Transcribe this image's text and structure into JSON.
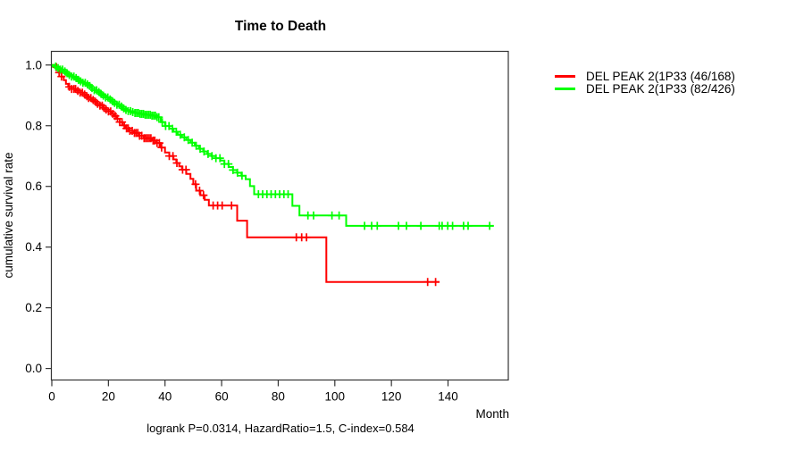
{
  "chart_data": {
    "type": "line",
    "subtype": "kaplan-meier-step",
    "title": "Time to Death",
    "xlabel": "Month",
    "ylabel": "cumulative survival rate",
    "footer": "logrank P=0.0314, HazardRatio=1.5, C-index=0.584",
    "grid": false,
    "legend_position": "right-outside",
    "x_ticks": [
      0,
      20,
      40,
      60,
      80,
      100,
      120,
      140
    ],
    "y_ticks": [
      "0.0",
      "0.2",
      "0.4",
      "0.6",
      "0.8",
      "1.0"
    ],
    "x_axis": {
      "min": 0,
      "max": 161.3
    },
    "y_axis": {
      "min": -0.038,
      "max": 1.045
    },
    "axis_color": "#333333",
    "series": [
      {
        "name": "DEL PEAK 2(1P33 (46/168)",
        "events": 46,
        "total": 168,
        "color": "#ff0000",
        "end_month": 137,
        "steps": [
          [
            0,
            1.0
          ],
          [
            1,
            0.993
          ],
          [
            1.8,
            0.985
          ],
          [
            2.6,
            0.975
          ],
          [
            3.4,
            0.962
          ],
          [
            4.2,
            0.95
          ],
          [
            5,
            0.938
          ],
          [
            5.8,
            0.928
          ],
          [
            7,
            0.921
          ],
          [
            8.5,
            0.915
          ],
          [
            10,
            0.909
          ],
          [
            11,
            0.903
          ],
          [
            12,
            0.897
          ],
          [
            13,
            0.891
          ],
          [
            14,
            0.885
          ],
          [
            15,
            0.879
          ],
          [
            16,
            0.872
          ],
          [
            17,
            0.866
          ],
          [
            18,
            0.859
          ],
          [
            19,
            0.853
          ],
          [
            20,
            0.847
          ],
          [
            21,
            0.839
          ],
          [
            22,
            0.832
          ],
          [
            23,
            0.823
          ],
          [
            24,
            0.812
          ],
          [
            25,
            0.801
          ],
          [
            26,
            0.791
          ],
          [
            27.5,
            0.783
          ],
          [
            29,
            0.776
          ],
          [
            31,
            0.767
          ],
          [
            32.5,
            0.759
          ],
          [
            35.5,
            0.751
          ],
          [
            37,
            0.743
          ],
          [
            38.5,
            0.728
          ],
          [
            40,
            0.712
          ],
          [
            41.5,
            0.7
          ],
          [
            43,
            0.689
          ],
          [
            44,
            0.677
          ],
          [
            45,
            0.666
          ],
          [
            46,
            0.655
          ],
          [
            47.5,
            0.641
          ],
          [
            49,
            0.625
          ],
          [
            50,
            0.607
          ],
          [
            51,
            0.586
          ],
          [
            52.5,
            0.571
          ],
          [
            54,
            0.556
          ],
          [
            55.5,
            0.537
          ],
          [
            65.5,
            0.487
          ],
          [
            69,
            0.432
          ],
          [
            97,
            0.285
          ]
        ],
        "censor_months": [
          1.6,
          2.6,
          3.4,
          6.2,
          7.0,
          7.8,
          8.4,
          9.2,
          10.0,
          10.8,
          11.6,
          12.4,
          13.0,
          13.8,
          14.6,
          15.4,
          16.2,
          17.0,
          17.8,
          18.4,
          19.2,
          20.0,
          20.8,
          21.6,
          22.4,
          23.2,
          24.0,
          24.8,
          25.6,
          26.4,
          27.0,
          27.6,
          28.4,
          29.2,
          29.8,
          30.4,
          31.0,
          31.8,
          32.6,
          33.2,
          33.8,
          34.4,
          35.0,
          35.8,
          36.4,
          37.2,
          38.0,
          38.8,
          41.5,
          42.8,
          44.2,
          46.2,
          47.4,
          50.8,
          52.2,
          53.6,
          57.0,
          58.6,
          60.2,
          63.5,
          86.4,
          88.3,
          90.0,
          132.8,
          135.6
        ]
      },
      {
        "name": "DEL PEAK 2(1P33 (82/426)",
        "events": 82,
        "total": 426,
        "color": "#00ff00",
        "end_month": 156.2,
        "steps": [
          [
            0,
            1.0
          ],
          [
            1,
            0.995
          ],
          [
            2,
            0.99
          ],
          [
            3,
            0.985
          ],
          [
            4,
            0.979
          ],
          [
            5,
            0.973
          ],
          [
            6,
            0.967
          ],
          [
            7,
            0.962
          ],
          [
            8,
            0.957
          ],
          [
            9,
            0.951
          ],
          [
            10,
            0.946
          ],
          [
            11,
            0.941
          ],
          [
            12,
            0.936
          ],
          [
            13,
            0.931
          ],
          [
            14,
            0.924
          ],
          [
            15,
            0.917
          ],
          [
            16,
            0.911
          ],
          [
            17,
            0.905
          ],
          [
            18,
            0.899
          ],
          [
            19,
            0.893
          ],
          [
            20,
            0.887
          ],
          [
            21,
            0.881
          ],
          [
            22,
            0.875
          ],
          [
            23,
            0.869
          ],
          [
            24,
            0.863
          ],
          [
            25,
            0.857
          ],
          [
            26,
            0.852
          ],
          [
            27,
            0.848
          ],
          [
            28,
            0.845
          ],
          [
            29,
            0.842
          ],
          [
            31,
            0.839
          ],
          [
            33,
            0.836
          ],
          [
            35,
            0.833
          ],
          [
            37,
            0.828
          ],
          [
            38.5,
            0.812
          ],
          [
            40,
            0.799
          ],
          [
            41.5,
            0.79
          ],
          [
            43,
            0.78
          ],
          [
            44.5,
            0.77
          ],
          [
            46,
            0.762
          ],
          [
            47.5,
            0.753
          ],
          [
            49,
            0.744
          ],
          [
            50.5,
            0.734
          ],
          [
            52,
            0.724
          ],
          [
            53.5,
            0.715
          ],
          [
            55,
            0.707
          ],
          [
            56.5,
            0.7
          ],
          [
            58,
            0.693
          ],
          [
            59.5,
            0.685
          ],
          [
            61,
            0.674
          ],
          [
            62.5,
            0.664
          ],
          [
            64,
            0.654
          ],
          [
            65.5,
            0.645
          ],
          [
            67,
            0.635
          ],
          [
            68.5,
            0.624
          ],
          [
            70,
            0.601
          ],
          [
            71.5,
            0.574
          ],
          [
            85,
            0.536
          ],
          [
            87.5,
            0.504
          ],
          [
            104,
            0.47
          ]
        ],
        "censor_months": [
          1.4,
          2.2,
          3.0,
          3.8,
          4.6,
          5.4,
          6.2,
          7.0,
          7.8,
          8.6,
          9.4,
          10.2,
          11.0,
          11.8,
          12.6,
          13.4,
          14.2,
          15.0,
          15.8,
          16.6,
          17.4,
          18.2,
          19.0,
          19.8,
          20.6,
          21.4,
          22.2,
          23.0,
          23.8,
          24.6,
          25.4,
          26.2,
          27.0,
          27.8,
          28.6,
          29.4,
          30.0,
          30.6,
          31.2,
          31.8,
          32.4,
          33.0,
          33.6,
          34.2,
          34.8,
          35.4,
          36.0,
          36.6,
          37.2,
          37.8,
          39.0,
          40.2,
          41.4,
          42.6,
          44.0,
          45.4,
          46.8,
          48.2,
          49.6,
          51.0,
          52.4,
          53.8,
          55.2,
          56.6,
          58.0,
          59.4,
          61.0,
          62.4,
          64.0,
          65.6,
          67.2,
          73.0,
          74.5,
          76.0,
          77.5,
          79.0,
          80.5,
          82.0,
          83.5,
          90.5,
          92.5,
          99.0,
          101.5,
          110.5,
          113.0,
          115.0,
          122.5,
          125.3,
          130.4,
          136.9,
          137.9,
          139.9,
          141.6,
          145.5,
          147.1,
          154.7
        ]
      }
    ]
  }
}
